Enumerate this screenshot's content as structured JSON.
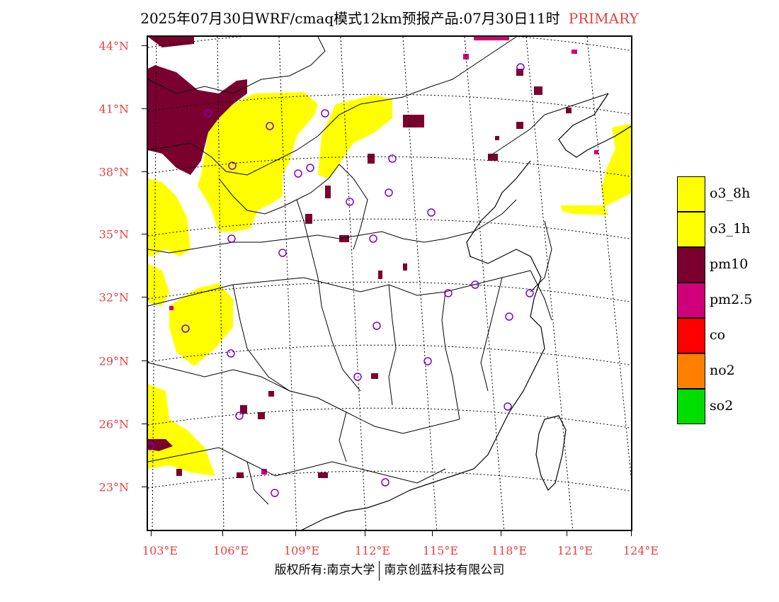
{
  "title": {
    "main": "2025年07月30日WRF/cmaq模式12km预报产品:07月30日11时",
    "tag": "PRIMARY"
  },
  "axes": {
    "lat_labels": [
      "44°N",
      "41°N",
      "38°N",
      "35°N",
      "32°N",
      "29°N",
      "26°N",
      "23°N"
    ],
    "lon_labels": [
      "103°E",
      "106°E",
      "109°E",
      "112°E",
      "115°E",
      "118°E",
      "121°E",
      "124°E"
    ]
  },
  "legend": [
    {
      "label": "o3_8h",
      "color": "#ffff00"
    },
    {
      "label": "o3_1h",
      "color": "#ffff00"
    },
    {
      "label": "pm10",
      "color": "#7a0030"
    },
    {
      "label": "pm2.5",
      "color": "#d0007a"
    },
    {
      "label": "co",
      "color": "#ff0000"
    },
    {
      "label": "no2",
      "color": "#ff8000"
    },
    {
      "label": "so2",
      "color": "#00dd00"
    }
  ],
  "footer": {
    "left": "版权所有:南京大学",
    "right": "南京创蓝科技有限公司"
  }
}
